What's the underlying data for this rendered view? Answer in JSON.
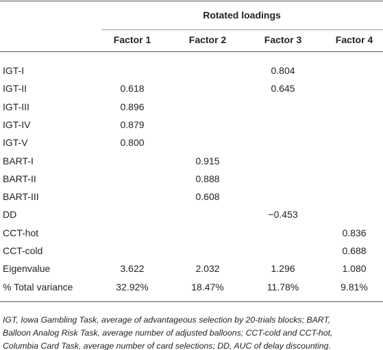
{
  "table": {
    "group_header": "Rotated loadings",
    "columns": [
      "Factor 1",
      "Factor 2",
      "Factor 3",
      "Factor 4"
    ],
    "rows": [
      [
        "IGT-I",
        null,
        null,
        "0.804",
        null
      ],
      [
        "IGT-II",
        "0.618",
        null,
        "0.645",
        null
      ],
      [
        "IGT-III",
        "0.896",
        null,
        null,
        null
      ],
      [
        "IGT-IV",
        "0.879",
        null,
        null,
        null
      ],
      [
        "IGT-V",
        "0.800",
        null,
        null,
        null
      ],
      [
        "BART-I",
        null,
        "0.915",
        null,
        null
      ],
      [
        "BART-II",
        null,
        "0.888",
        null,
        null
      ],
      [
        "BART-III",
        null,
        "0.608",
        null,
        null
      ],
      [
        "DD",
        null,
        null,
        "−0.453",
        null
      ],
      [
        "CCT-hot",
        null,
        null,
        null,
        "0.836"
      ],
      [
        "CCT-cold",
        null,
        null,
        null,
        "0.688"
      ],
      [
        "Eigenvalue",
        "3.622",
        "2.032",
        "1.296",
        "1.080"
      ],
      [
        "% Total variance",
        "32.92%",
        "18.47%",
        "11.78%",
        "9.81%"
      ]
    ],
    "footnote": [
      "IGT, Iowa Gambling Task, average of advantageous selection by 20-trials blocks; BART,",
      "Balloon Analog Risk Task, average number of adjusted balloons; CCT-cold and CCT-hot,",
      "Columbia Card Task, average number of card selections; DD, AUC of delay discounting."
    ]
  }
}
